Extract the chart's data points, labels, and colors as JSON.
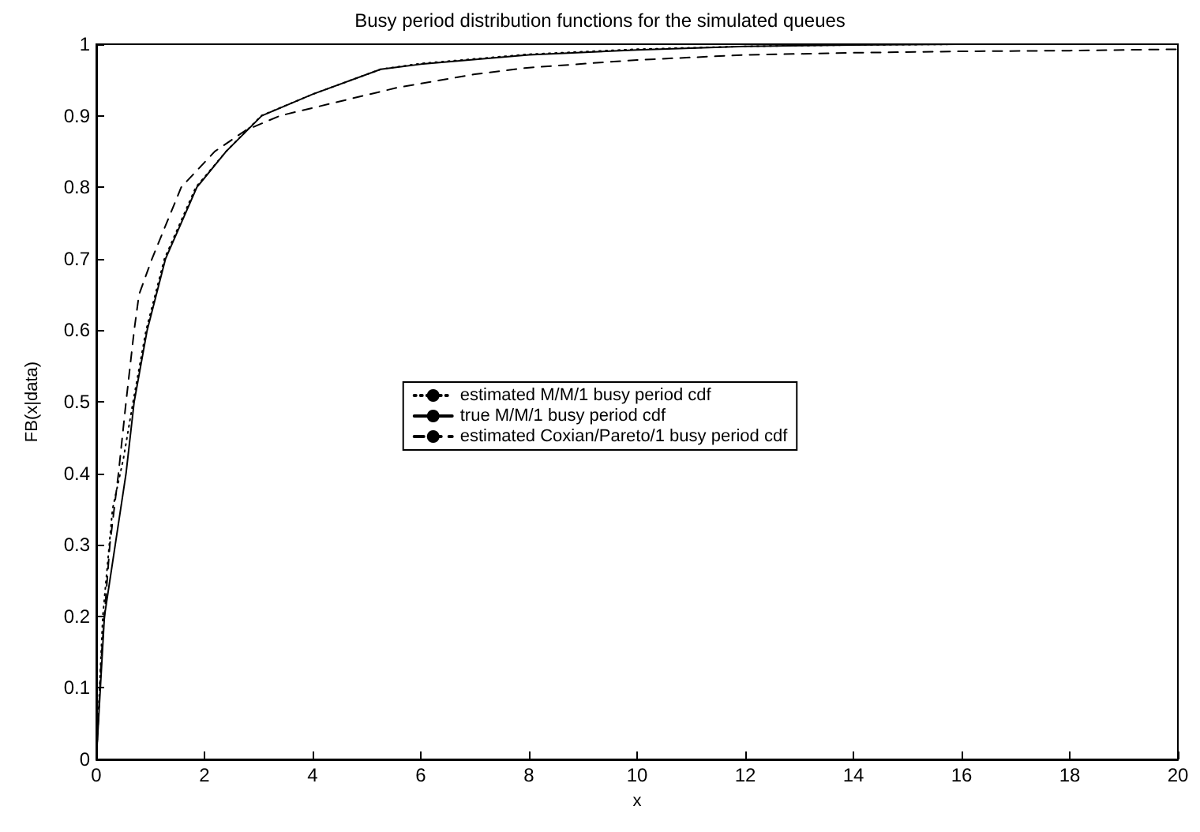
{
  "chart_data": {
    "type": "line",
    "title": "Busy period distribution functions for the simulated queues",
    "xlabel": "x",
    "ylabel": "FB(x|data)",
    "xlim": [
      0,
      20
    ],
    "ylim": [
      0,
      1
    ],
    "xticks": [
      0,
      2,
      4,
      6,
      8,
      10,
      12,
      14,
      16,
      18,
      20
    ],
    "yticks": [
      0,
      0.1,
      0.2,
      0.3,
      0.4,
      0.5,
      0.6,
      0.7,
      0.8,
      0.9,
      1
    ],
    "grid": false,
    "legend": "center",
    "marker": "none",
    "series": [
      {
        "name": "estimated M/M/1 busy period cdf",
        "color": "#000000",
        "line_style": "dotted",
        "x": [
          0,
          0.12,
          0.3,
          0.5,
          0.68,
          0.92,
          1.26,
          1.84,
          2.4,
          3.05,
          4,
          5.26,
          6,
          8,
          10,
          12,
          14,
          16,
          18,
          20
        ],
        "values": [
          0,
          0.2,
          0.35,
          0.42,
          0.5,
          0.6,
          0.7,
          0.8,
          0.85,
          0.9,
          0.93,
          0.965,
          0.973,
          0.986,
          0.993,
          0.997,
          0.999,
          1,
          1,
          1
        ]
      },
      {
        "name": "true M/M/1 busy period cdf",
        "color": "#000000",
        "line_style": "solid",
        "x": [
          0,
          0.15,
          0.35,
          0.55,
          0.7,
          0.94,
          1.28,
          1.86,
          2.4,
          3.06,
          4,
          5.26,
          6,
          8,
          10,
          12,
          14,
          16,
          18,
          20
        ],
        "values": [
          0,
          0.2,
          0.3,
          0.4,
          0.5,
          0.6,
          0.7,
          0.8,
          0.85,
          0.9,
          0.93,
          0.965,
          0.972,
          0.985,
          0.992,
          0.997,
          0.999,
          1,
          1,
          1
        ]
      },
      {
        "name": "estimated Coxian/Pareto/1 busy period cdf",
        "color": "#000000",
        "line_style": "dashed",
        "x": [
          0,
          0.1,
          0.25,
          0.41,
          0.55,
          0.7,
          0.79,
          1.03,
          1.57,
          2.19,
          2.77,
          3.4,
          4.5,
          5.55,
          7,
          7.96,
          10,
          12,
          14,
          16,
          18,
          20
        ],
        "values": [
          0,
          0.15,
          0.3,
          0.4,
          0.5,
          0.6,
          0.65,
          0.7,
          0.8,
          0.85,
          0.88,
          0.9,
          0.92,
          0.939,
          0.958,
          0.967,
          0.978,
          0.985,
          0.988,
          0.99,
          0.991,
          0.993
        ]
      }
    ]
  }
}
